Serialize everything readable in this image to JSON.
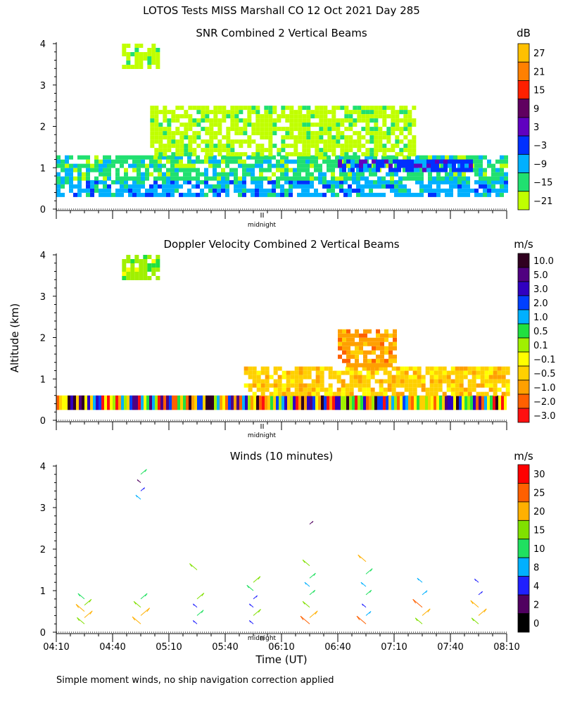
{
  "header": {
    "title": "LOTOS Tests MISS Marshall CO  12 Oct 2021 Day 285"
  },
  "footnote": "Simple moment winds, no ship navigation correction applied",
  "colors": {
    "axis": "#000000"
  },
  "chart_data": [
    {
      "type": "heatmap",
      "title": "SNR Combined 2 Vertical Beams",
      "ylabel": "Altitude (km)",
      "ylim": [
        0,
        4
      ],
      "yticks": [
        "0",
        "1",
        "2",
        "3",
        "4"
      ],
      "midnight_label": "midnight",
      "colorbar": {
        "unit": "dB",
        "labels": [
          "27",
          "21",
          "15",
          "9",
          "3",
          "−3",
          "−9",
          "−15",
          "−21"
        ],
        "colors": [
          "#ffc000",
          "#ff8000",
          "#ff2000",
          "#600060",
          "#6000c0",
          "#0030ff",
          "#00b0ff",
          "#20e070",
          "#c0ff00"
        ]
      },
      "regions": [
        {
          "t0": "04:10",
          "t1": "08:10",
          "z0": 0.3,
          "z1": 0.7,
          "level": "−9"
        },
        {
          "t0": "04:10",
          "t1": "08:10",
          "z0": 0.7,
          "z1": 1.3,
          "level": "−15"
        },
        {
          "t0": "06:40",
          "t1": "07:50",
          "z0": 0.95,
          "z1": 1.2,
          "level": "−3"
        },
        {
          "t0": "05:00",
          "t1": "07:20",
          "z0": 1.3,
          "z1": 2.5,
          "level": "−21"
        },
        {
          "t0": "04:45",
          "t1": "05:05",
          "z0": 3.4,
          "z1": 4.0,
          "level": "−21"
        }
      ]
    },
    {
      "type": "heatmap",
      "title": "Doppler Velocity Combined 2 Vertical Beams",
      "ylabel": "Altitude (km)",
      "ylim": [
        0,
        4
      ],
      "yticks": [
        "0",
        "1",
        "2",
        "3",
        "4"
      ],
      "midnight_label": "midnight",
      "colorbar": {
        "unit": "m/s",
        "labels": [
          "10.0",
          "5.0",
          "3.0",
          "2.0",
          "1.0",
          "0.5",
          "0.1",
          "−0.1",
          "−0.5",
          "−1.0",
          "−2.0",
          "−3.0"
        ],
        "colors": [
          "#300020",
          "#500080",
          "#3000c0",
          "#0040ff",
          "#00b0ff",
          "#20e040",
          "#a0f000",
          "#ffff00",
          "#ffd000",
          "#ffa000",
          "#ff6000",
          "#ff1010"
        ]
      },
      "regions": [
        {
          "t0": "04:10",
          "t1": "08:10",
          "z0": 0.25,
          "z1": 0.6,
          "level": "mixed"
        },
        {
          "t0": "05:50",
          "t1": "08:10",
          "z0": 0.6,
          "z1": 1.3,
          "level": "−0.5"
        },
        {
          "t0": "06:40",
          "t1": "07:10",
          "z0": 1.3,
          "z1": 2.2,
          "level": "−1.0"
        },
        {
          "t0": "04:45",
          "t1": "05:05",
          "z0": 3.4,
          "z1": 4.0,
          "level": "0.1"
        }
      ]
    },
    {
      "type": "scatter",
      "title": "Winds (10 minutes)",
      "xlabel": "Time (UT)",
      "ylabel": "Altitude (km)",
      "ylim": [
        0,
        4
      ],
      "yticks": [
        "0",
        "1",
        "2",
        "3",
        "4"
      ],
      "xticks": [
        "04:10",
        "04:40",
        "05:10",
        "05:40",
        "06:10",
        "06:40",
        "07:10",
        "07:40",
        "08:10"
      ],
      "midnight_label": "midnight",
      "colorbar": {
        "unit": "m/s",
        "labels": [
          "30",
          "25",
          "20",
          "15",
          "10",
          "8",
          "4",
          "2",
          "0"
        ],
        "colors": [
          "#ff0000",
          "#ff6000",
          "#ffb000",
          "#80e000",
          "#20e060",
          "#00b0ff",
          "#2020ff",
          "#500060",
          "#000000"
        ]
      },
      "profiles": [
        {
          "time": "04:25",
          "points": [
            [
              0.2,
              18
            ],
            [
              0.35,
              20
            ],
            [
              0.5,
              22
            ],
            [
              0.65,
              16
            ],
            [
              0.8,
              14
            ]
          ]
        },
        {
          "time": "04:55",
          "points": [
            [
              0.2,
              22
            ],
            [
              0.4,
              24
            ],
            [
              0.6,
              16
            ],
            [
              0.8,
              14
            ],
            [
              3.2,
              8
            ],
            [
              3.4,
              4
            ],
            [
              3.6,
              2
            ],
            [
              3.8,
              12
            ]
          ]
        },
        {
          "time": "05:25",
          "points": [
            [
              0.2,
              4
            ],
            [
              0.4,
              14
            ],
            [
              0.6,
              4
            ],
            [
              0.8,
              16
            ],
            [
              1.5,
              18
            ]
          ]
        },
        {
          "time": "05:55",
          "points": [
            [
              0.2,
              4
            ],
            [
              0.4,
              18
            ],
            [
              0.6,
              4
            ],
            [
              0.8,
              4
            ],
            [
              1.0,
              14
            ],
            [
              1.2,
              16
            ]
          ]
        },
        {
          "time": "06:25",
          "points": [
            [
              0.2,
              25
            ],
            [
              0.35,
              20
            ],
            [
              0.6,
              16
            ],
            [
              0.9,
              10
            ],
            [
              1.1,
              8
            ],
            [
              1.3,
              12
            ],
            [
              1.6,
              16
            ],
            [
              2.6,
              2
            ]
          ]
        },
        {
          "time": "06:55",
          "points": [
            [
              0.2,
              25
            ],
            [
              0.4,
              8
            ],
            [
              0.6,
              4
            ],
            [
              0.9,
              10
            ],
            [
              1.1,
              8
            ],
            [
              1.4,
              14
            ],
            [
              1.7,
              20
            ]
          ]
        },
        {
          "time": "07:25",
          "points": [
            [
              0.2,
              16
            ],
            [
              0.4,
              20
            ],
            [
              0.6,
              26
            ],
            [
              0.9,
              8
            ],
            [
              1.2,
              8
            ]
          ]
        },
        {
          "time": "07:55",
          "points": [
            [
              0.2,
              16
            ],
            [
              0.4,
              20
            ],
            [
              0.6,
              20
            ],
            [
              0.9,
              4
            ],
            [
              1.2,
              4
            ]
          ]
        }
      ]
    }
  ]
}
